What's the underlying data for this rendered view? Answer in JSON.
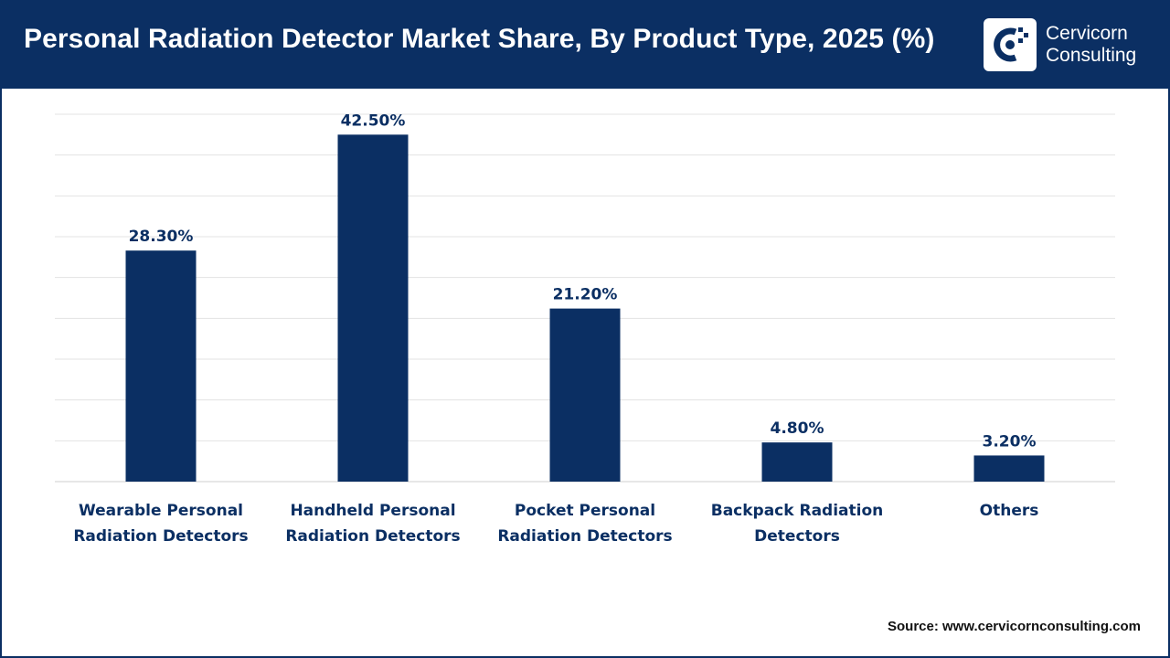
{
  "header": {
    "title": "Personal Radiation Detector Market Share, By Product Type, 2025 (%)",
    "logo_line1": "Cervicorn",
    "logo_line2": "Consulting"
  },
  "source": "Source: www.cervicornconsulting.com",
  "colors": {
    "header_bg": "#0b2f63",
    "bar": "#0b2f63",
    "label": "#0b2f63",
    "grid": "#e3e3e3"
  },
  "chart_data": {
    "type": "bar",
    "title": "Personal Radiation Detector Market Share, By Product Type, 2025 (%)",
    "categories": [
      [
        "Wearable Personal",
        "Radiation Detectors"
      ],
      [
        "Handheld Personal",
        "Radiation Detectors"
      ],
      [
        "Pocket Personal",
        "Radiation Detectors"
      ],
      [
        "Backpack Radiation",
        "Detectors"
      ],
      [
        "Others"
      ]
    ],
    "values": [
      28.3,
      42.5,
      21.2,
      4.8,
      3.2
    ],
    "value_labels": [
      "28.30%",
      "42.50%",
      "21.20%",
      "4.80%",
      "3.20%"
    ],
    "ylim": [
      0,
      45
    ],
    "grid": true,
    "xlabel": "",
    "ylabel": ""
  }
}
